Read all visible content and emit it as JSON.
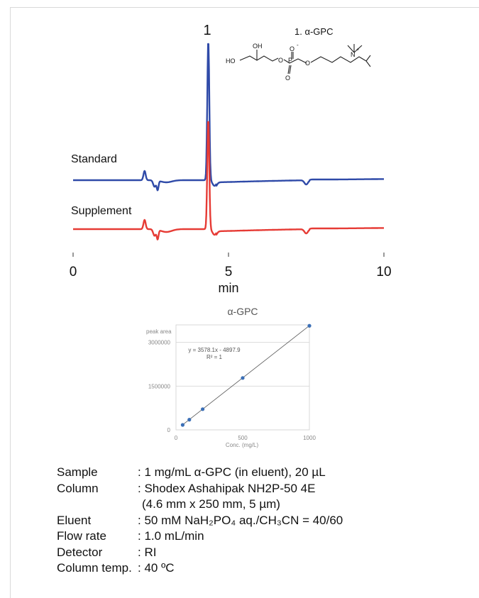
{
  "chromatogram": {
    "peak_number": "1",
    "compound_label": "1. α-GPC",
    "trace_labels": [
      "Standard",
      "Supplement"
    ],
    "x_ticks": [
      "0",
      "5",
      "10"
    ],
    "x_unit": "min",
    "colors": {
      "standard": "#2f4aa8",
      "supplement": "#e63b35"
    },
    "structure_atoms": [
      "HO",
      "OH",
      "O",
      "P",
      "O",
      "O",
      "O",
      "N",
      "+",
      "-"
    ]
  },
  "chart_data": {
    "type": "scatter",
    "title": "α-GPC",
    "ylabel": "peak area",
    "xlabel": "Conc. (mg/L)",
    "x_ticks": [
      0,
      500,
      1000
    ],
    "y_ticks": [
      0,
      1500000,
      3000000
    ],
    "y_tick_labels": [
      "0",
      "1500000",
      "3000000"
    ],
    "xlim": [
      0,
      1000
    ],
    "ylim": [
      0,
      3600000
    ],
    "grid": true,
    "series": [
      {
        "x": [
          50,
          100,
          200,
          500,
          1000
        ],
        "y": [
          170000,
          350000,
          710000,
          1780000,
          3570000
        ]
      }
    ],
    "trendline": {
      "slope": 3578.1,
      "intercept": -4897.9
    },
    "equation": "y = 3578.1x - 4897.9",
    "r_squared": "R² = 1",
    "point_color": "#3b6fb6"
  },
  "conditions": {
    "sample": {
      "label": "Sample",
      "value": ": 1 mg/mL α-GPC (in eluent), 20 µL"
    },
    "column": {
      "label": "Column",
      "value": ": Shodex Ashahipak NH2P-50 4E",
      "value2": "(4.6 mm x 250 mm, 5 µm)"
    },
    "eluent": {
      "label": "Eluent",
      "value": ": 50 mM NaH₂PO₄ aq./CH₃CN = 40/60"
    },
    "flow_rate": {
      "label": "Flow rate",
      "value": ": 1.0 mL/min"
    },
    "detector": {
      "label": "Detector",
      "value": ": RI"
    },
    "column_temp": {
      "label": "Column temp.",
      "value": ": 40 ºC"
    }
  }
}
